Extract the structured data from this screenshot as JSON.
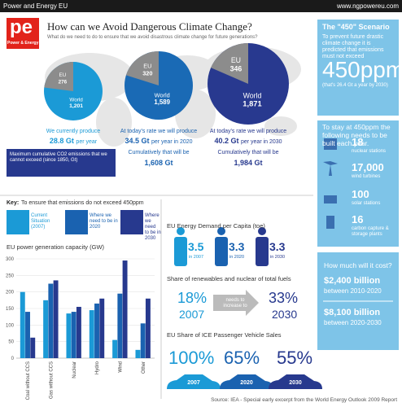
{
  "header": {
    "brand": "Power and Energy EU",
    "url": "www.ngpowereu.com",
    "logo": "pe",
    "logo_sub": "Power & Energy",
    "title": "How can we Avoid Dangerous Climate Change?",
    "subtitle": "What do we need to do to ensure that we avoid disastrous climate change for future generations?"
  },
  "chart_data": [
    {
      "type": "pie",
      "categories": [
        "EU",
        "World"
      ],
      "values": [
        276,
        1201
      ],
      "value_labels": [
        "276",
        "1,201"
      ],
      "colors": [
        "#8c8c8c",
        "#1b9ad6"
      ]
    },
    {
      "type": "pie",
      "categories": [
        "EU",
        "World"
      ],
      "values": [
        320,
        1589
      ],
      "value_labels": [
        "320",
        "1,589"
      ],
      "colors": [
        "#8c8c8c",
        "#1a6ab5"
      ]
    },
    {
      "type": "pie",
      "categories": [
        "EU",
        "World"
      ],
      "values": [
        346,
        1871
      ],
      "value_labels": [
        "346",
        "1,871"
      ],
      "colors": [
        "#8c8c8c",
        "#28398f"
      ]
    },
    {
      "type": "bar",
      "title": "EU power generation capacity (GW)",
      "categories": [
        "Coal without CCS",
        "Gas without CCS",
        "Nuclear",
        "Hydro",
        "Wind",
        "Other"
      ],
      "series": [
        {
          "name": "Current Situation (2007)",
          "color": "#1b9ad6",
          "values": [
            200,
            175,
            135,
            145,
            55,
            25
          ]
        },
        {
          "name": "Where we need to be in 2020",
          "color": "#1a62b0",
          "values": [
            140,
            225,
            140,
            165,
            195,
            105
          ]
        },
        {
          "name": "Where we need to be in 2030",
          "color": "#27398e",
          "values": [
            62,
            235,
            155,
            180,
            295,
            180
          ]
        }
      ],
      "ylim": [
        0,
        300
      ],
      "yticks": [
        0,
        50,
        100,
        150,
        200,
        250,
        300
      ],
      "grid": true
    }
  ],
  "emissions": [
    {
      "intro": "We currently produce",
      "amount": "28.8 Gt",
      "suffix": "per year"
    },
    {
      "intro": "At today's rate we will produce",
      "amount": "34.5 Gt",
      "suffix": "per year in 2020",
      "cumulative_label": "Cumulatively that will be",
      "cumulative": "1,608 Gt"
    },
    {
      "intro": "At today's rate we will produce",
      "amount": "40.2 Gt",
      "suffix": "per year in 2030",
      "cumulative_label": "Cumulatively that will be",
      "cumulative": "1,984 Gt"
    }
  ],
  "max_note": "Maximum cumulative CO2 emissions that we cannot exceed (since 1850, Gt)",
  "scenario": {
    "title": "The \"450\" Scenario",
    "text": "To prevent future drastic climate change it is predicted that emissions must not exceed",
    "big": "450ppm",
    "note": "(that's 26.4 Gt a year by 2030)"
  },
  "build": {
    "intro": "To stay at 450ppm the following needs to be built each year.",
    "items": [
      {
        "number": "18",
        "label": "nuclear stations"
      },
      {
        "number": "17,000",
        "label": "wind turbines"
      },
      {
        "number": "100",
        "label": "solar stations"
      },
      {
        "number": "16",
        "label": "carbon capture & storage plants"
      }
    ]
  },
  "cost": {
    "title": "How much will it cost?",
    "items": [
      {
        "amount": "$2,400 billion",
        "period": "between 2010-2020"
      },
      {
        "amount": "$8,100 billion",
        "period": "between 2020-2030"
      }
    ]
  },
  "key": {
    "label": "Key:",
    "text": "To ensure that emissions do not exceed 450ppm"
  },
  "demand": {
    "title": "EU Energy Demand per Capita (toe)",
    "items": [
      {
        "value": "3.5",
        "year": "in 2007"
      },
      {
        "value": "3.3",
        "year": "in 2020"
      },
      {
        "value": "3.3",
        "year": "in 2030"
      }
    ]
  },
  "share": {
    "title": "Share of renewables and nuclear of total fuels",
    "from": "18%",
    "from_year": "2007",
    "arrow": "needs to increase to",
    "to": "33%",
    "to_year": "2030"
  },
  "vehicles": {
    "title": "EU Share of ICE Passenger Vehicle Sales",
    "items": [
      {
        "value": "100%",
        "year": "2007"
      },
      {
        "value": "65%",
        "year": "2020"
      },
      {
        "value": "55%",
        "year": "2030"
      }
    ]
  },
  "source": "Source: IEA - Special early excerpt from the World Energy Outlook 2009 Report"
}
